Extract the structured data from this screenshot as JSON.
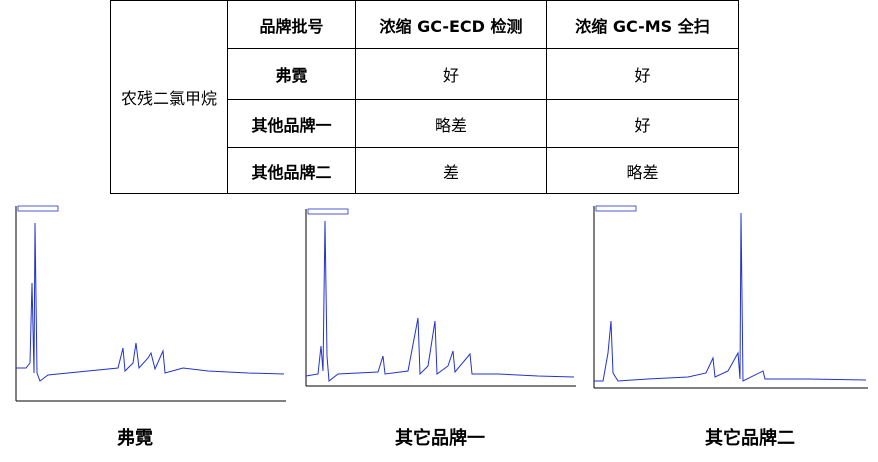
{
  "table": {
    "row_label": "农残二氯甲烷",
    "header": [
      "品牌批号",
      "浓缩 GC-ECD 检测",
      "浓缩 GC-MS 全扫"
    ],
    "rows": [
      [
        "弗霓",
        "好",
        "好"
      ],
      [
        "其他品牌一",
        "略差",
        "好"
      ],
      [
        "其他品牌二",
        "差",
        "略差"
      ]
    ]
  },
  "captions": [
    "弗霓",
    "其它品牌一",
    "其它品牌二"
  ]
}
